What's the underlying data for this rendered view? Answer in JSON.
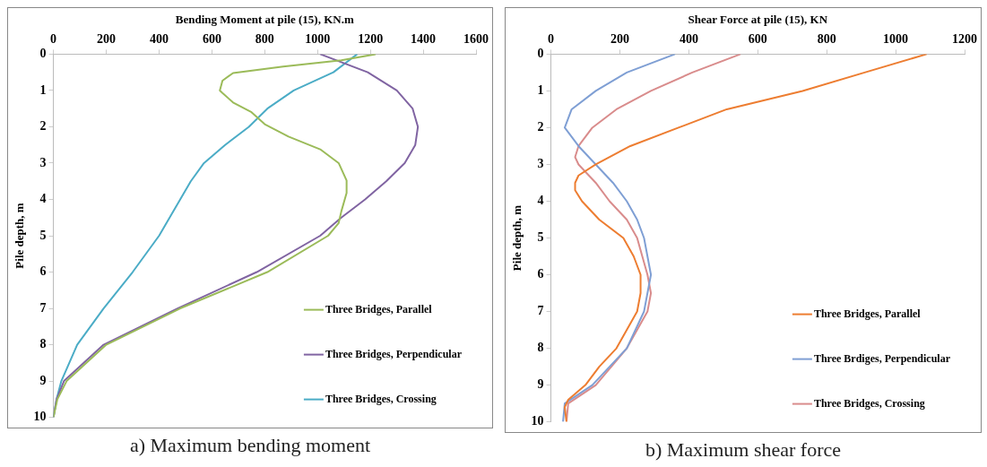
{
  "chart_data": [
    {
      "type": "line",
      "title": "a) Maximum bending moment",
      "xlabel": "Bending Moment at pile (15), KN.m",
      "ylabel": "Pile depth, m",
      "xlim": [
        0,
        1600
      ],
      "xticks": [
        0,
        200,
        400,
        600,
        800,
        1000,
        1200,
        1400,
        1600
      ],
      "ylim": [
        10,
        0
      ],
      "yticks": [
        0,
        1,
        2,
        3,
        4,
        5,
        6,
        7,
        8,
        9,
        10
      ],
      "grid": false,
      "legend": "bottom right",
      "marker": "none",
      "line_style": "solid",
      "series": [
        {
          "name": "Three Bridges, Parallel",
          "color": "#9bbb59",
          "x": [
            1220,
            1090,
            870,
            680,
            640,
            630,
            640,
            680,
            750,
            800,
            890,
            1010,
            1080,
            1110,
            1110,
            1090,
            1080,
            1040,
            810,
            480,
            200,
            50,
            15,
            0
          ],
          "values": [
            0,
            0.17,
            0.34,
            0.52,
            0.73,
            1,
            1.07,
            1.33,
            1.6,
            1.93,
            2.27,
            2.62,
            3,
            3.48,
            3.82,
            4.33,
            4.65,
            5,
            6,
            7,
            8,
            9,
            9.5,
            10
          ]
        },
        {
          "name": "Three Bridges, Perpendicular",
          "color": "#8064a2",
          "x": [
            1010,
            1190,
            1300,
            1360,
            1380,
            1370,
            1330,
            1260,
            1180,
            1090,
            1010,
            770,
            470,
            190,
            40,
            12,
            0
          ],
          "values": [
            0,
            0.5,
            1,
            1.5,
            2,
            2.5,
            3,
            3.5,
            4,
            4.5,
            5,
            6,
            7,
            8,
            9,
            9.5,
            10
          ]
        },
        {
          "name": "Three Bridges, Crossing",
          "color": "#4bacc6",
          "x": [
            1150,
            1060,
            910,
            810,
            740,
            650,
            570,
            520,
            480,
            440,
            400,
            300,
            190,
            90,
            30,
            12,
            0
          ],
          "values": [
            0,
            0.5,
            1,
            1.5,
            2,
            2.5,
            3,
            3.5,
            4,
            4.5,
            5,
            6,
            7,
            8,
            9,
            9.5,
            10
          ]
        }
      ]
    },
    {
      "type": "line",
      "title": "b) Maximum shear force",
      "xlabel": "Shear Force at pile (15), KN",
      "ylabel": "Pile depth, m",
      "xlim": [
        0,
        1200
      ],
      "xticks": [
        0,
        200,
        400,
        600,
        800,
        1000,
        1200
      ],
      "ylim": [
        10,
        0
      ],
      "yticks": [
        0,
        1,
        2,
        3,
        4,
        5,
        6,
        7,
        8,
        9,
        10
      ],
      "grid": false,
      "legend": "bottom right",
      "marker": "none",
      "line_style": "solid",
      "series": [
        {
          "name": "Three Bridges, Parallel",
          "color": "#ed7d31",
          "x": [
            1090,
            910,
            730,
            510,
            370,
            230,
            130,
            80,
            70,
            70,
            90,
            140,
            210,
            240,
            260,
            260,
            250,
            220,
            190,
            140,
            100,
            50,
            40,
            45
          ],
          "values": [
            0,
            0.5,
            1,
            1.5,
            2,
            2.5,
            3,
            3.3,
            3.5,
            3.7,
            4,
            4.5,
            5,
            5.5,
            6,
            6.5,
            7,
            7.5,
            8,
            8.5,
            9,
            9.4,
            9.6,
            10
          ]
        },
        {
          "name": "Three Brdiges, Perpendicular",
          "color": "#7f9fd4",
          "x": [
            360,
            220,
            130,
            60,
            40,
            80,
            130,
            180,
            220,
            250,
            270,
            290,
            270,
            220,
            120,
            40,
            35
          ],
          "values": [
            0,
            0.5,
            1,
            1.5,
            2,
            2.5,
            3,
            3.5,
            4,
            4.5,
            5,
            6,
            7,
            8,
            9,
            9.5,
            10
          ]
        },
        {
          "name": "Three Bridges, Crossing",
          "color": "#d98c8c",
          "x": [
            550,
            410,
            290,
            190,
            120,
            80,
            70,
            80,
            130,
            170,
            220,
            250,
            280,
            290,
            280,
            220,
            130,
            50,
            45
          ],
          "values": [
            0,
            0.5,
            1,
            1.5,
            2,
            2.5,
            2.8,
            3,
            3.5,
            4,
            4.5,
            5,
            6,
            6.5,
            7,
            8,
            9,
            9.5,
            10
          ]
        }
      ]
    }
  ]
}
